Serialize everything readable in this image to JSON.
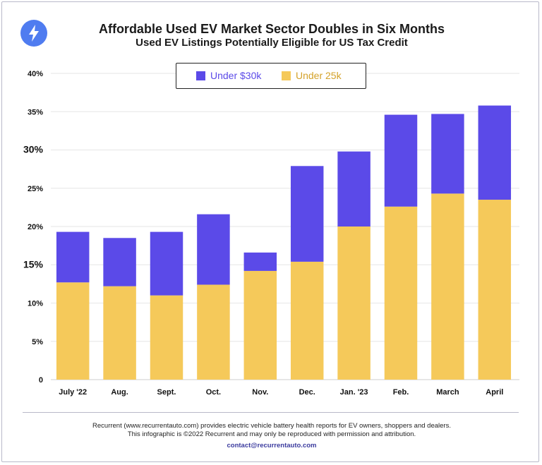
{
  "header": {
    "title": "Affordable Used EV Market Sector Doubles in Six Months",
    "subtitle": "Used EV Listings Potentially Eligible for US Tax Credit",
    "logo_icon": "lightning-bolt-icon"
  },
  "footer": {
    "line1": "Recurrent (www.recurrentauto.com) provides electric vehicle battery health reports for EV owners, shoppers and dealers.",
    "line2": "This infographic is ©2022 Recurrent and may only be reproduced with permission and attribution.",
    "contact": "contact@recurrentauto.com"
  },
  "colors": {
    "under30k": "#5b4ae8",
    "under25k": "#f5c95a",
    "grid": "#e6e6e6",
    "legend_text_30k": "#5b4ae8",
    "legend_text_25k": "#d4a22a"
  },
  "chart_data": {
    "type": "bar",
    "stacked": true,
    "title": "Affordable Used EV Market Sector Doubles in Six Months",
    "subtitle": "Used EV Listings Potentially Eligible for US Tax Credit",
    "xlabel": "",
    "ylabel": "",
    "ylim": [
      0,
      40
    ],
    "yticks": [
      "0",
      "5%",
      "10%",
      "15%",
      "20%",
      "25%",
      "30%",
      "35%",
      "40%"
    ],
    "categories": [
      "July '22",
      "Aug.",
      "Sept.",
      "Oct.",
      "Nov.",
      "Dec.",
      "Jan. '23",
      "Feb.",
      "March",
      "April"
    ],
    "series": [
      {
        "name": "Under 25k",
        "values": [
          12.7,
          12.2,
          11.0,
          12.4,
          14.2,
          15.4,
          20.0,
          22.6,
          24.3,
          23.5
        ]
      },
      {
        "name": "Under $30k",
        "values": [
          6.6,
          6.3,
          8.3,
          9.2,
          2.4,
          12.5,
          9.8,
          12.0,
          10.4,
          12.3
        ]
      }
    ],
    "legend": {
      "placement": "top-center",
      "order": [
        "Under $30k",
        "Under 25k"
      ]
    },
    "grid": true
  }
}
